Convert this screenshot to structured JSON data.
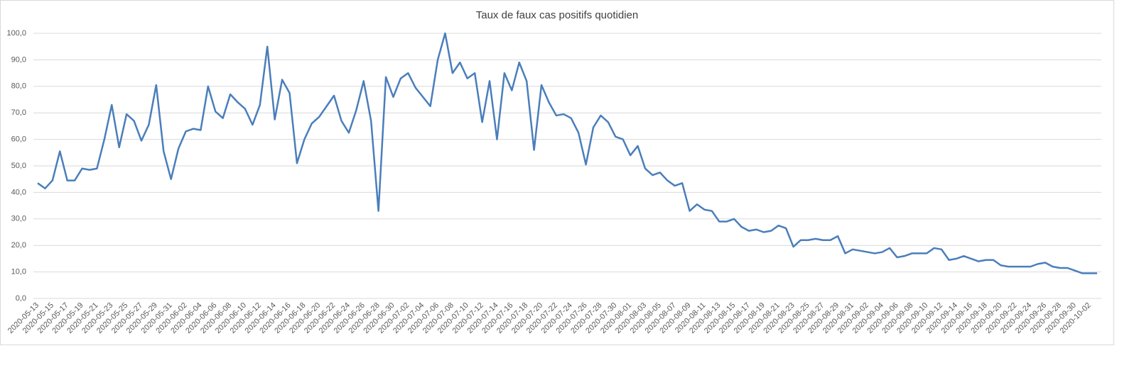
{
  "chart_data": {
    "type": "line",
    "title": "Taux de faux cas positifs quotidien",
    "categories": [
      "2020-05-13",
      null,
      "2020-05-15",
      null,
      "2020-05-17",
      null,
      "2020-05-19",
      null,
      "2020-05-21",
      null,
      "2020-05-23",
      null,
      "2020-05-25",
      null,
      "2020-05-27",
      null,
      "2020-05-29",
      null,
      "2020-05-31",
      null,
      "2020-06-02",
      null,
      "2020-06-04",
      null,
      "2020-06-06",
      null,
      "2020-06-08",
      null,
      "2020-06-10",
      null,
      "2020-06-12",
      null,
      "2020-06-14",
      null,
      "2020-06-16",
      null,
      "2020-06-18",
      null,
      "2020-06-20",
      null,
      "2020-06-22",
      null,
      "2020-06-24",
      null,
      "2020-06-26",
      null,
      "2020-06-28",
      null,
      "2020-06-30",
      null,
      "2020-07-02",
      null,
      "2020-07-04",
      null,
      "2020-07-06",
      null,
      "2020-07-08",
      null,
      "2020-07-10",
      null,
      "2020-07-12",
      null,
      "2020-07-14",
      null,
      "2020-07-16",
      null,
      "2020-07-18",
      null,
      "2020-07-20",
      null,
      "2020-07-22",
      null,
      "2020-07-24",
      null,
      "2020-07-26",
      null,
      "2020-07-28",
      null,
      "2020-07-30",
      null,
      "2020-08-01",
      null,
      "2020-08-03",
      null,
      "2020-08-05",
      null,
      "2020-08-07",
      null,
      "2020-08-09",
      null,
      "2020-08-11",
      null,
      "2020-08-13",
      null,
      "2020-08-15",
      null,
      "2020-08-17",
      null,
      "2020-08-19",
      null,
      "2020-08-21",
      null,
      "2020-08-23",
      null,
      "2020-08-25",
      null,
      "2020-08-27",
      null,
      "2020-08-29",
      null,
      "2020-08-31",
      null,
      "2020-09-02",
      null,
      "2020-09-04",
      null,
      "2020-09-06",
      null,
      "2020-09-08",
      null,
      "2020-09-10",
      null,
      "2020-09-12",
      null,
      "2020-09-14",
      null,
      "2020-09-16",
      null,
      "2020-09-18",
      null,
      "2020-09-20",
      null,
      "2020-09-22",
      null,
      "2020-09-24",
      null,
      "2020-09-26",
      null,
      "2020-09-28",
      null,
      "2020-09-30",
      null,
      "2020-10-02",
      null
    ],
    "values": [
      43.5,
      41.5,
      44.5,
      55.5,
      44.5,
      44.5,
      49,
      48.5,
      49,
      60,
      73,
      57,
      69.5,
      67,
      59.5,
      65.5,
      80.5,
      55.5,
      45,
      56.5,
      63,
      64,
      63.5,
      80,
      70.5,
      68,
      77,
      74,
      71.5,
      65.5,
      73,
      95,
      67.5,
      82.5,
      77.5,
      51,
      60,
      66,
      68.5,
      72.5,
      76.5,
      67,
      62.5,
      71,
      82,
      67,
      33,
      83.5,
      76,
      83,
      85,
      79.5,
      76,
      72.5,
      90,
      100,
      85,
      89,
      83,
      85,
      66.5,
      82,
      60,
      85,
      78.5,
      89,
      82,
      56,
      80.5,
      74,
      69,
      69.5,
      68,
      62.5,
      50.5,
      64.5,
      69,
      66.5,
      61,
      60,
      54,
      57.5,
      49,
      46.5,
      47.5,
      44.5,
      42.5,
      43.5,
      33,
      35.5,
      33.5,
      33,
      29,
      29,
      30,
      27,
      25.5,
      26,
      25,
      25.5,
      27.5,
      26.5,
      19.5,
      22,
      22,
      22.5,
      22,
      22,
      23.5,
      17,
      18.5,
      18,
      17.5,
      17,
      17.5,
      19,
      15.5,
      16,
      17,
      17,
      17,
      19,
      18.5,
      14.5,
      15,
      16,
      15,
      14,
      14.5,
      14.5,
      12.5,
      12,
      12,
      12,
      12,
      13,
      13.5,
      12,
      11.5,
      11.5,
      10.5,
      9.5,
      9.5,
      9.5
    ],
    "color": "#4a7ebb",
    "ylim": [
      0,
      100
    ],
    "yticks": [
      {
        "value": 0,
        "label": "0,0"
      },
      {
        "value": 10,
        "label": "10,0"
      },
      {
        "value": 20,
        "label": "20,0"
      },
      {
        "value": 30,
        "label": "30,0"
      },
      {
        "value": 40,
        "label": "40,0"
      },
      {
        "value": 50,
        "label": "50,0"
      },
      {
        "value": 60,
        "label": "60,0"
      },
      {
        "value": 70,
        "label": "70,0"
      },
      {
        "value": 80,
        "label": "80,0"
      },
      {
        "value": 90,
        "label": "90,0"
      },
      {
        "value": 100,
        "label": "100,0"
      }
    ],
    "grid": true
  }
}
